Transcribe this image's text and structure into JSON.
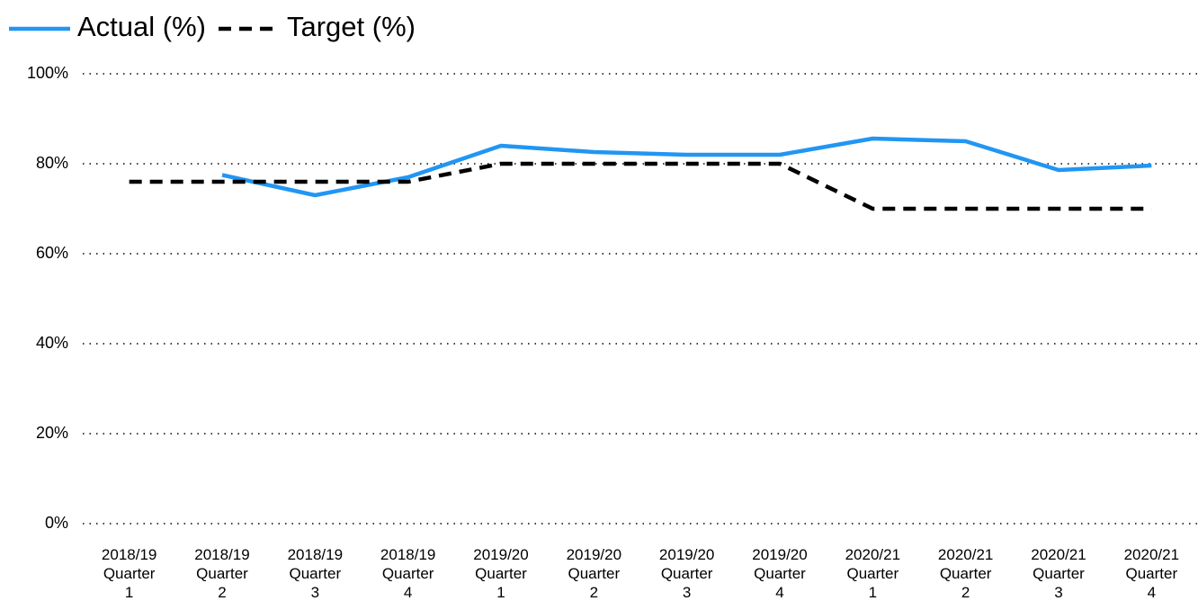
{
  "chart_data": {
    "type": "line",
    "categories": [
      "2018/19 Quarter 1",
      "2018/19 Quarter 2",
      "2018/19 Quarter 3",
      "2018/19 Quarter 4",
      "2019/20 Quarter 1",
      "2019/20 Quarter 2",
      "2019/20 Quarter 3",
      "2019/20 Quarter 4",
      "2020/21 Quarter 1",
      "2020/21 Quarter 2",
      "2020/21 Quarter 3",
      "2020/21 Quarter 4"
    ],
    "series": [
      {
        "name": "Actual (%)",
        "color": "#2196f3",
        "dashed": false,
        "values": [
          null,
          77.5,
          73,
          77,
          84,
          82.6,
          82,
          82,
          85.6,
          85,
          78.6,
          79.6
        ]
      },
      {
        "name": "Target (%)",
        "color": "#000000",
        "dashed": true,
        "values": [
          76,
          76,
          76,
          76,
          80,
          80,
          80,
          80,
          70,
          70,
          70,
          70
        ]
      }
    ],
    "ylim": [
      0,
      100
    ],
    "yticks": [
      {
        "value": 0,
        "label": "0%"
      },
      {
        "value": 20,
        "label": "20%"
      },
      {
        "value": 40,
        "label": "40%"
      },
      {
        "value": 60,
        "label": "60%"
      },
      {
        "value": 80,
        "label": "80%"
      },
      {
        "value": 100,
        "label": "100%"
      }
    ],
    "grid": true,
    "legend": "top-left"
  }
}
